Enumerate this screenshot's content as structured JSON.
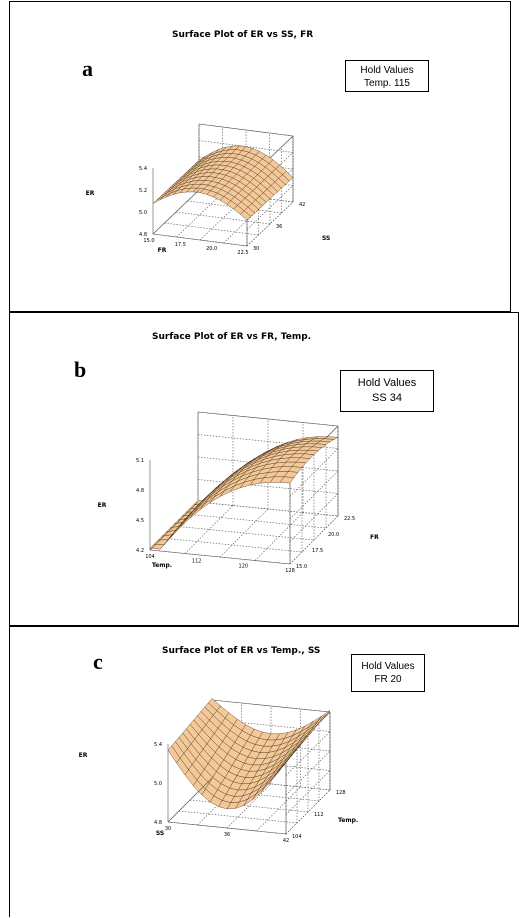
{
  "chart_data": [
    {
      "type": "surface",
      "panel_label": "a",
      "title": "Surface Plot of ER vs SS, FR",
      "hold_values": {
        "heading": "Hold Values",
        "line": "Temp.  115"
      },
      "zlabel": "ER",
      "xlabel": "FR",
      "ylabel": "SS",
      "z_ticks": [
        "4.8",
        "5.0",
        "5.2",
        "5.4"
      ],
      "x_ticks": [
        "15.0",
        "17.5",
        "20.0",
        "22.5"
      ],
      "y_ticks": [
        "30",
        "36",
        "42"
      ],
      "x_range": [
        15,
        22.5
      ],
      "y_range": [
        30,
        42
      ],
      "z_range": [
        4.8,
        5.4
      ]
    },
    {
      "type": "surface",
      "panel_label": "b",
      "title": "Surface Plot of ER vs FR, Temp.",
      "hold_values": {
        "heading": "Hold Values",
        "line": "SS  34"
      },
      "zlabel": "ER",
      "xlabel": "Temp.",
      "ylabel": "FR",
      "z_ticks": [
        "4.2",
        "4.5",
        "4.8",
        "5.1"
      ],
      "x_ticks": [
        "104",
        "112",
        "120",
        "128"
      ],
      "y_ticks": [
        "15.0",
        "17.5",
        "20.0",
        "22.5"
      ],
      "x_range": [
        104,
        128
      ],
      "y_range": [
        15,
        22.5
      ],
      "z_range": [
        4.2,
        5.1
      ]
    },
    {
      "type": "surface",
      "panel_label": "c",
      "title": "Surface Plot of ER vs Temp., SS",
      "hold_values": {
        "heading": "Hold Values",
        "line": "FR  20"
      },
      "zlabel": "ER",
      "xlabel": "SS",
      "ylabel": "Temp.",
      "z_ticks": [
        "4.8",
        "5.0",
        "5.4"
      ],
      "x_ticks": [
        "30",
        "36",
        "42"
      ],
      "y_ticks": [
        "104",
        "112",
        "128"
      ],
      "x_range": [
        30,
        42
      ],
      "y_range": [
        104,
        128
      ],
      "z_range": [
        4.8,
        5.4
      ]
    }
  ],
  "colors": {
    "surface": "#f3c99a",
    "mesh": "#3a2208",
    "underside": "#c8956a"
  }
}
